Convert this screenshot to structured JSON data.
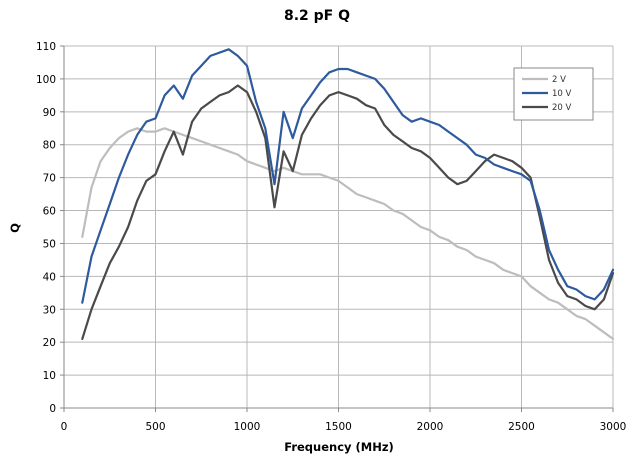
{
  "chart_data": {
    "type": "line",
    "title": "8.2 pF Q",
    "xlabel": "Frequency (MHz)",
    "ylabel": "Q",
    "xlim": [
      0,
      3000
    ],
    "ylim": [
      0,
      110
    ],
    "x_ticks": [
      0,
      500,
      1000,
      1500,
      2000,
      2500,
      3000
    ],
    "y_ticks": [
      0,
      10,
      20,
      30,
      40,
      50,
      60,
      70,
      80,
      90,
      100,
      110
    ],
    "grid": true,
    "legend_position": "top-right",
    "series": [
      {
        "name": "2 V",
        "color": "#bdbdbd",
        "x": [
          100,
          150,
          200,
          250,
          300,
          350,
          400,
          450,
          500,
          550,
          600,
          650,
          700,
          750,
          800,
          850,
          900,
          950,
          1000,
          1050,
          1100,
          1150,
          1200,
          1250,
          1300,
          1350,
          1400,
          1450,
          1500,
          1550,
          1600,
          1650,
          1700,
          1750,
          1800,
          1850,
          1900,
          1950,
          2000,
          2050,
          2100,
          2150,
          2200,
          2250,
          2300,
          2350,
          2400,
          2450,
          2500,
          2550,
          2600,
          2650,
          2700,
          2750,
          2800,
          2850,
          2900,
          2950,
          3000
        ],
        "values": [
          52,
          67,
          75,
          79,
          82,
          84,
          85,
          84,
          84,
          85,
          84,
          83,
          82,
          81,
          80,
          79,
          78,
          77,
          75,
          74,
          73,
          72,
          73,
          72,
          71,
          71,
          71,
          70,
          69,
          67,
          65,
          64,
          63,
          62,
          60,
          59,
          57,
          55,
          54,
          52,
          51,
          49,
          48,
          46,
          45,
          44,
          42,
          41,
          40,
          37,
          35,
          33,
          32,
          30,
          28,
          27,
          25,
          23,
          21
        ]
      },
      {
        "name": "10 V",
        "color": "#2e5a9e",
        "x": [
          100,
          150,
          200,
          250,
          300,
          350,
          400,
          450,
          500,
          550,
          600,
          650,
          700,
          750,
          800,
          850,
          900,
          950,
          1000,
          1050,
          1100,
          1150,
          1200,
          1250,
          1300,
          1350,
          1400,
          1450,
          1500,
          1550,
          1600,
          1650,
          1700,
          1750,
          1800,
          1850,
          1900,
          1950,
          2000,
          2050,
          2100,
          2150,
          2200,
          2250,
          2300,
          2350,
          2400,
          2450,
          2500,
          2550,
          2600,
          2650,
          2700,
          2750,
          2800,
          2850,
          2900,
          2950,
          3000
        ],
        "values": [
          32,
          46,
          54,
          62,
          70,
          77,
          83,
          87,
          88,
          95,
          98,
          94,
          101,
          104,
          107,
          108,
          109,
          107,
          104,
          93,
          85,
          68,
          90,
          82,
          91,
          95,
          99,
          102,
          103,
          103,
          102,
          101,
          100,
          97,
          93,
          89,
          87,
          88,
          87,
          86,
          84,
          82,
          80,
          77,
          76,
          74,
          73,
          72,
          71,
          69,
          60,
          48,
          42,
          37,
          36,
          34,
          33,
          36,
          42
        ]
      },
      {
        "name": "20 V",
        "color": "#4a4a4a",
        "x": [
          100,
          150,
          200,
          250,
          300,
          350,
          400,
          450,
          500,
          550,
          600,
          650,
          700,
          750,
          800,
          850,
          900,
          950,
          1000,
          1050,
          1100,
          1150,
          1200,
          1250,
          1300,
          1350,
          1400,
          1450,
          1500,
          1550,
          1600,
          1650,
          1700,
          1750,
          1800,
          1850,
          1900,
          1950,
          2000,
          2050,
          2100,
          2150,
          2200,
          2250,
          2300,
          2350,
          2400,
          2450,
          2500,
          2550,
          2600,
          2650,
          2700,
          2750,
          2800,
          2850,
          2900,
          2950,
          3000
        ],
        "values": [
          21,
          30,
          37,
          44,
          49,
          55,
          63,
          69,
          71,
          78,
          84,
          77,
          87,
          91,
          93,
          95,
          96,
          98,
          96,
          90,
          82,
          61,
          78,
          72,
          83,
          88,
          92,
          95,
          96,
          95,
          94,
          92,
          91,
          86,
          83,
          81,
          79,
          78,
          76,
          73,
          70,
          68,
          69,
          72,
          75,
          77,
          76,
          75,
          73,
          70,
          58,
          45,
          38,
          34,
          33,
          31,
          30,
          33,
          41
        ]
      }
    ]
  }
}
